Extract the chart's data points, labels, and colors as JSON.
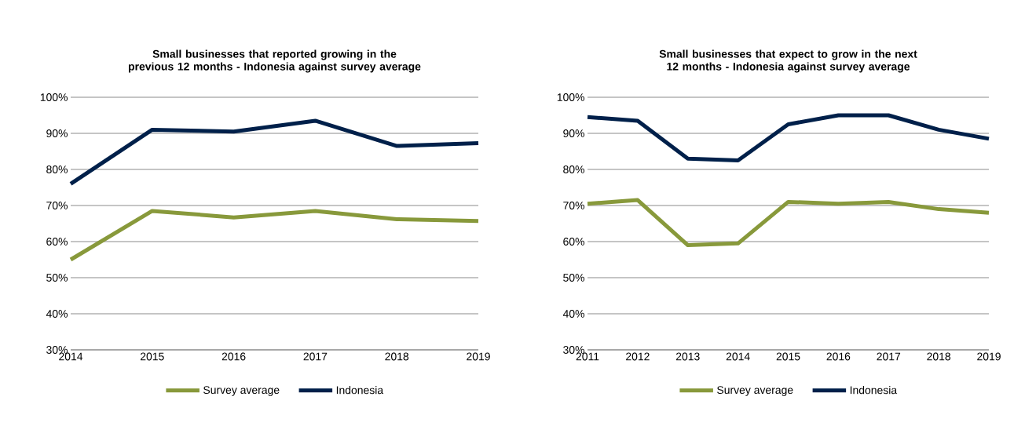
{
  "chart_data": [
    {
      "type": "line",
      "title": "Small businesses that reported growing in the previous 12 months - Indonesia against survey average",
      "categories": [
        "2014",
        "2015",
        "2016",
        "2017",
        "2018",
        "2019"
      ],
      "series": [
        {
          "name": "Survey average",
          "color": "#88993b",
          "values": [
            55,
            68.5,
            66.7,
            68.5,
            66.2,
            65.7
          ]
        },
        {
          "name": "Indonesia",
          "color": "#00204a",
          "values": [
            76,
            91,
            90.5,
            93.5,
            86.5,
            87.3
          ]
        }
      ],
      "ylim": [
        30,
        100
      ],
      "yticks": [
        {
          "value": 30,
          "label": "30%"
        },
        {
          "value": 40,
          "label": "40%"
        },
        {
          "value": 50,
          "label": "50%"
        },
        {
          "value": 60,
          "label": "60%"
        },
        {
          "value": 70,
          "label": "70%"
        },
        {
          "value": 80,
          "label": "80%"
        },
        {
          "value": 90,
          "label": "90%"
        },
        {
          "value": 100,
          "label": "100%"
        }
      ],
      "grid": "y",
      "legend": "bottom"
    },
    {
      "type": "line",
      "title": "Small businesses that expect to grow in the next 12 months - Indonesia against survey average",
      "categories": [
        "2011",
        "2012",
        "2013",
        "2014",
        "2015",
        "2016",
        "2017",
        "2018",
        "2019"
      ],
      "series": [
        {
          "name": "Survey average",
          "color": "#88993b",
          "values": [
            70.5,
            71.5,
            59,
            59.5,
            71,
            70.5,
            71,
            69,
            68
          ]
        },
        {
          "name": "Indonesia",
          "color": "#00204a",
          "values": [
            94.5,
            93.5,
            83,
            82.5,
            92.5,
            95,
            95,
            91,
            88.5
          ]
        }
      ],
      "ylim": [
        30,
        100
      ],
      "yticks": [
        {
          "value": 30,
          "label": "30%"
        },
        {
          "value": 40,
          "label": "40%"
        },
        {
          "value": 50,
          "label": "50%"
        },
        {
          "value": 60,
          "label": "60%"
        },
        {
          "value": 70,
          "label": "70%"
        },
        {
          "value": 80,
          "label": "80%"
        },
        {
          "value": 90,
          "label": "90%"
        },
        {
          "value": 100,
          "label": "100%"
        }
      ],
      "grid": "y",
      "legend": "bottom"
    }
  ]
}
